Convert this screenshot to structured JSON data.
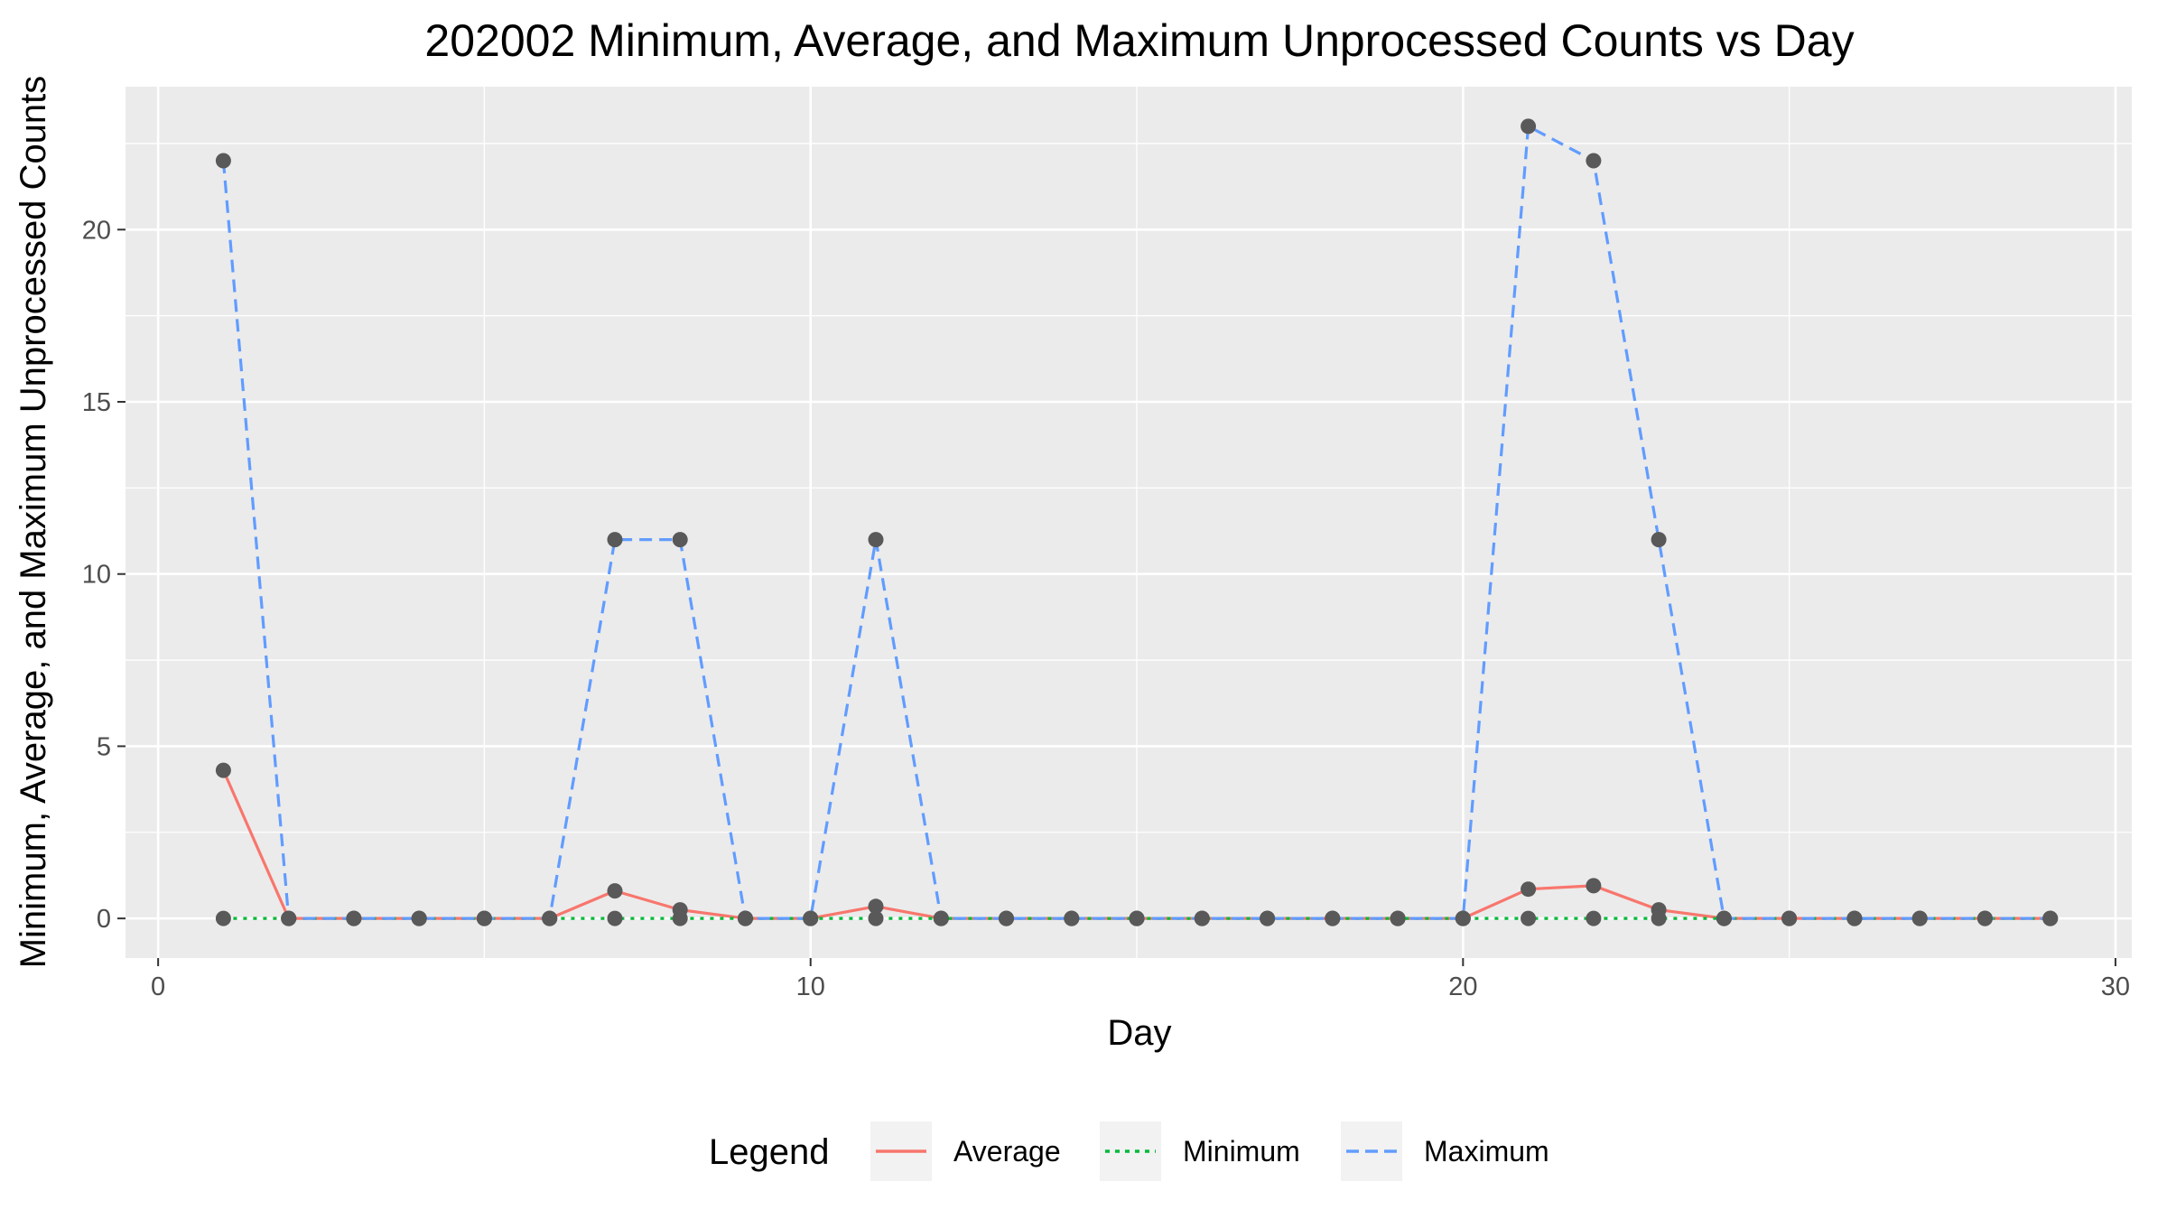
{
  "chart_data": {
    "type": "line",
    "title": "202002 Minimum, Average, and Maximum Unprocessed Counts vs Day",
    "xlabel": "Day",
    "ylabel": "Minimum, Average, and Maximum Unprocessed Counts",
    "xlim": [
      -0.5,
      30.25
    ],
    "ylim": [
      -1.15,
      24.15
    ],
    "x_ticks": [
      0,
      10,
      20,
      30
    ],
    "y_ticks": [
      0,
      5,
      10,
      15,
      20
    ],
    "grid": true,
    "legend": {
      "title": "Legend",
      "position": "bottom",
      "entries": [
        "Average",
        "Minimum",
        "Maximum"
      ]
    },
    "x": [
      1,
      2,
      3,
      4,
      5,
      6,
      7,
      8,
      9,
      10,
      11,
      12,
      13,
      14,
      15,
      16,
      17,
      18,
      19,
      20,
      21,
      22,
      23,
      24,
      25,
      26,
      27,
      28,
      29
    ],
    "series": [
      {
        "name": "Average",
        "color": "#F8766D",
        "dash": "solid",
        "values": [
          4.3,
          0,
          0,
          0,
          0,
          0,
          0.8,
          0.25,
          0,
          0,
          0.35,
          0,
          0,
          0,
          0,
          0,
          0,
          0,
          0,
          0,
          0.85,
          0.95,
          0.25,
          0,
          0,
          0,
          0,
          0,
          0
        ]
      },
      {
        "name": "Minimum",
        "color": "#00BA38",
        "dash": "dotted",
        "values": [
          0,
          0,
          0,
          0,
          0,
          0,
          0,
          0,
          0,
          0,
          0,
          0,
          0,
          0,
          0,
          0,
          0,
          0,
          0,
          0,
          0,
          0,
          0,
          0,
          0,
          0,
          0,
          0,
          0
        ]
      },
      {
        "name": "Maximum",
        "color": "#619CFF",
        "dash": "dashed",
        "values": [
          22,
          0,
          0,
          0,
          0,
          0,
          11,
          11,
          0,
          0,
          11,
          0,
          0,
          0,
          0,
          0,
          0,
          0,
          0,
          0,
          23,
          22,
          11,
          0,
          0,
          0,
          0,
          0,
          0
        ]
      }
    ],
    "point_color": "#595959"
  }
}
